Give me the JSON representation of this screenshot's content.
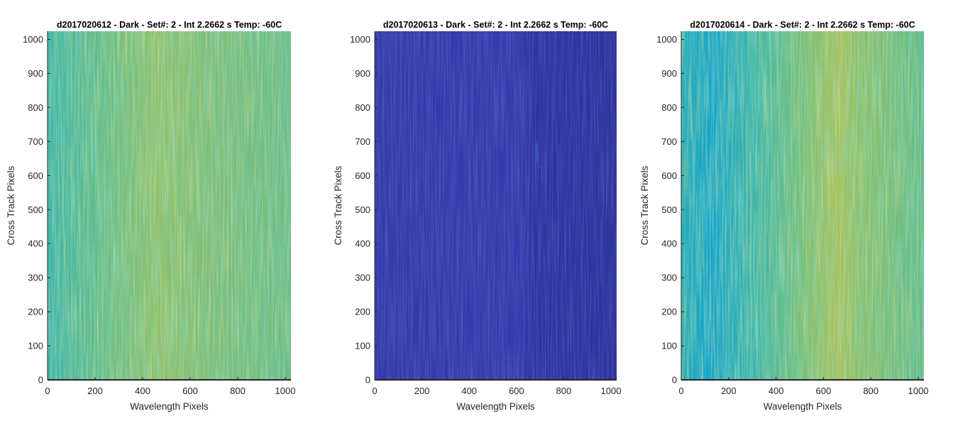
{
  "chart_data": [
    {
      "type": "heatmap",
      "title": "d2017020612 - Dark - Set#: 2 - Int 2.2662 s Temp: -60C",
      "xlabel": "Wavelength Pixels",
      "ylabel": "Cross Track Pixels",
      "xlim": [
        0,
        1024
      ],
      "ylim": [
        0,
        1024
      ],
      "xticks": [
        0,
        200,
        400,
        600,
        800,
        1000
      ],
      "yticks": [
        0,
        100,
        200,
        300,
        400,
        500,
        600,
        700,
        800,
        900,
        1000
      ],
      "colormap": "parula",
      "appearance": "mixed teal and yellow-green vertical streaks, uniform across the frame",
      "colors": [
        "#1fa5b8",
        "#4cb89a",
        "#8fbf6a",
        "#bcbd4c"
      ]
    },
    {
      "type": "heatmap",
      "title": "d2017020613 - Dark - Set#: 2 - Int 2.2662 s Temp: -60C",
      "xlabel": "Wavelength Pixels",
      "ylabel": "Cross Track Pixels",
      "xlim": [
        0,
        1024
      ],
      "ylim": [
        0,
        1024
      ],
      "xticks": [
        0,
        200,
        400,
        600,
        800,
        1000
      ],
      "yticks": [
        0,
        100,
        200,
        300,
        400,
        500,
        600,
        700,
        800,
        900,
        1000
      ],
      "colormap": "parula",
      "appearance": "nearly uniform dark blue, slightly darker right of column ~640, faint feature near column ~680-710, rows ~580-700",
      "colors": [
        "#3338a8",
        "#3a40b0",
        "#2b2e96"
      ]
    },
    {
      "type": "heatmap",
      "title": "d2017020614 - Dark - Set#: 2 - Int 2.2662 s Temp: -60C",
      "xlabel": "Wavelength Pixels",
      "ylabel": "Cross Track Pixels",
      "xlim": [
        0,
        1024
      ],
      "ylim": [
        0,
        1024
      ],
      "xticks": [
        0,
        200,
        400,
        600,
        800,
        1000
      ],
      "yticks": [
        0,
        100,
        200,
        300,
        400,
        500,
        600,
        700,
        800,
        900,
        1000
      ],
      "colormap": "parula",
      "appearance": "cooler teal-blue on the left (columns ~0-250), yellow-green band around columns ~600-700",
      "colors": [
        "#12a4d3",
        "#2bb1ad",
        "#7dbf73",
        "#b4be55"
      ]
    }
  ]
}
